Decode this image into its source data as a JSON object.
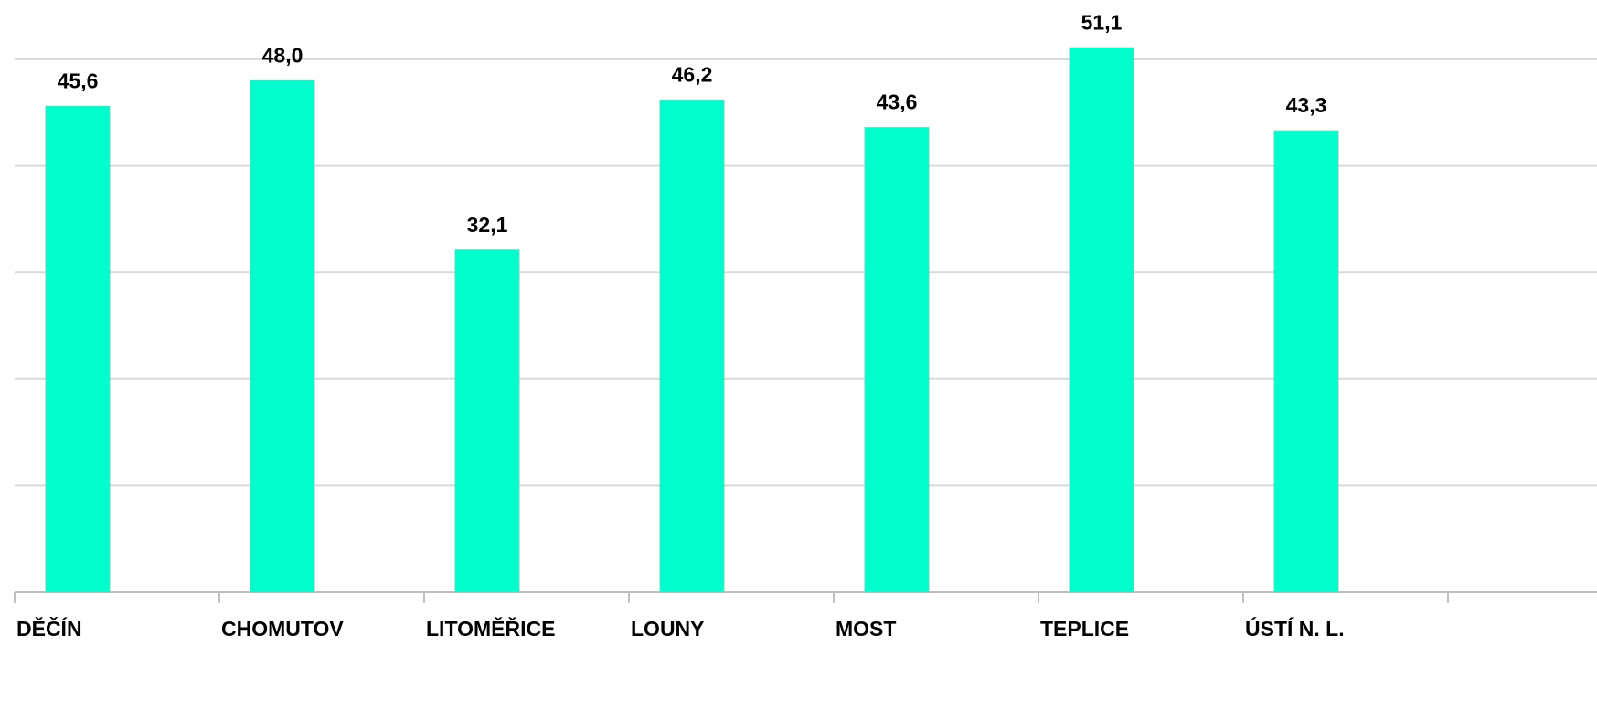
{
  "chart_data": {
    "type": "bar",
    "categories": [
      "DĚČÍN",
      "CHOMUTOV",
      "LITOMĚŘICE",
      "LOUNY",
      "MOST",
      "TEPLICE",
      "ÚSTÍ N. L."
    ],
    "values": [
      45.6,
      48.0,
      32.1,
      46.2,
      43.6,
      51.1,
      43.3
    ],
    "value_labels": [
      "45,6",
      "48,0",
      "32,1",
      "46,2",
      "43,6",
      "51,1",
      "43,3"
    ],
    "color": "#00ffcc",
    "ylim": [
      0,
      55
    ],
    "yticks": [
      0,
      10,
      20,
      30,
      40,
      50
    ],
    "grid": true,
    "show_ytick_labels": false
  }
}
